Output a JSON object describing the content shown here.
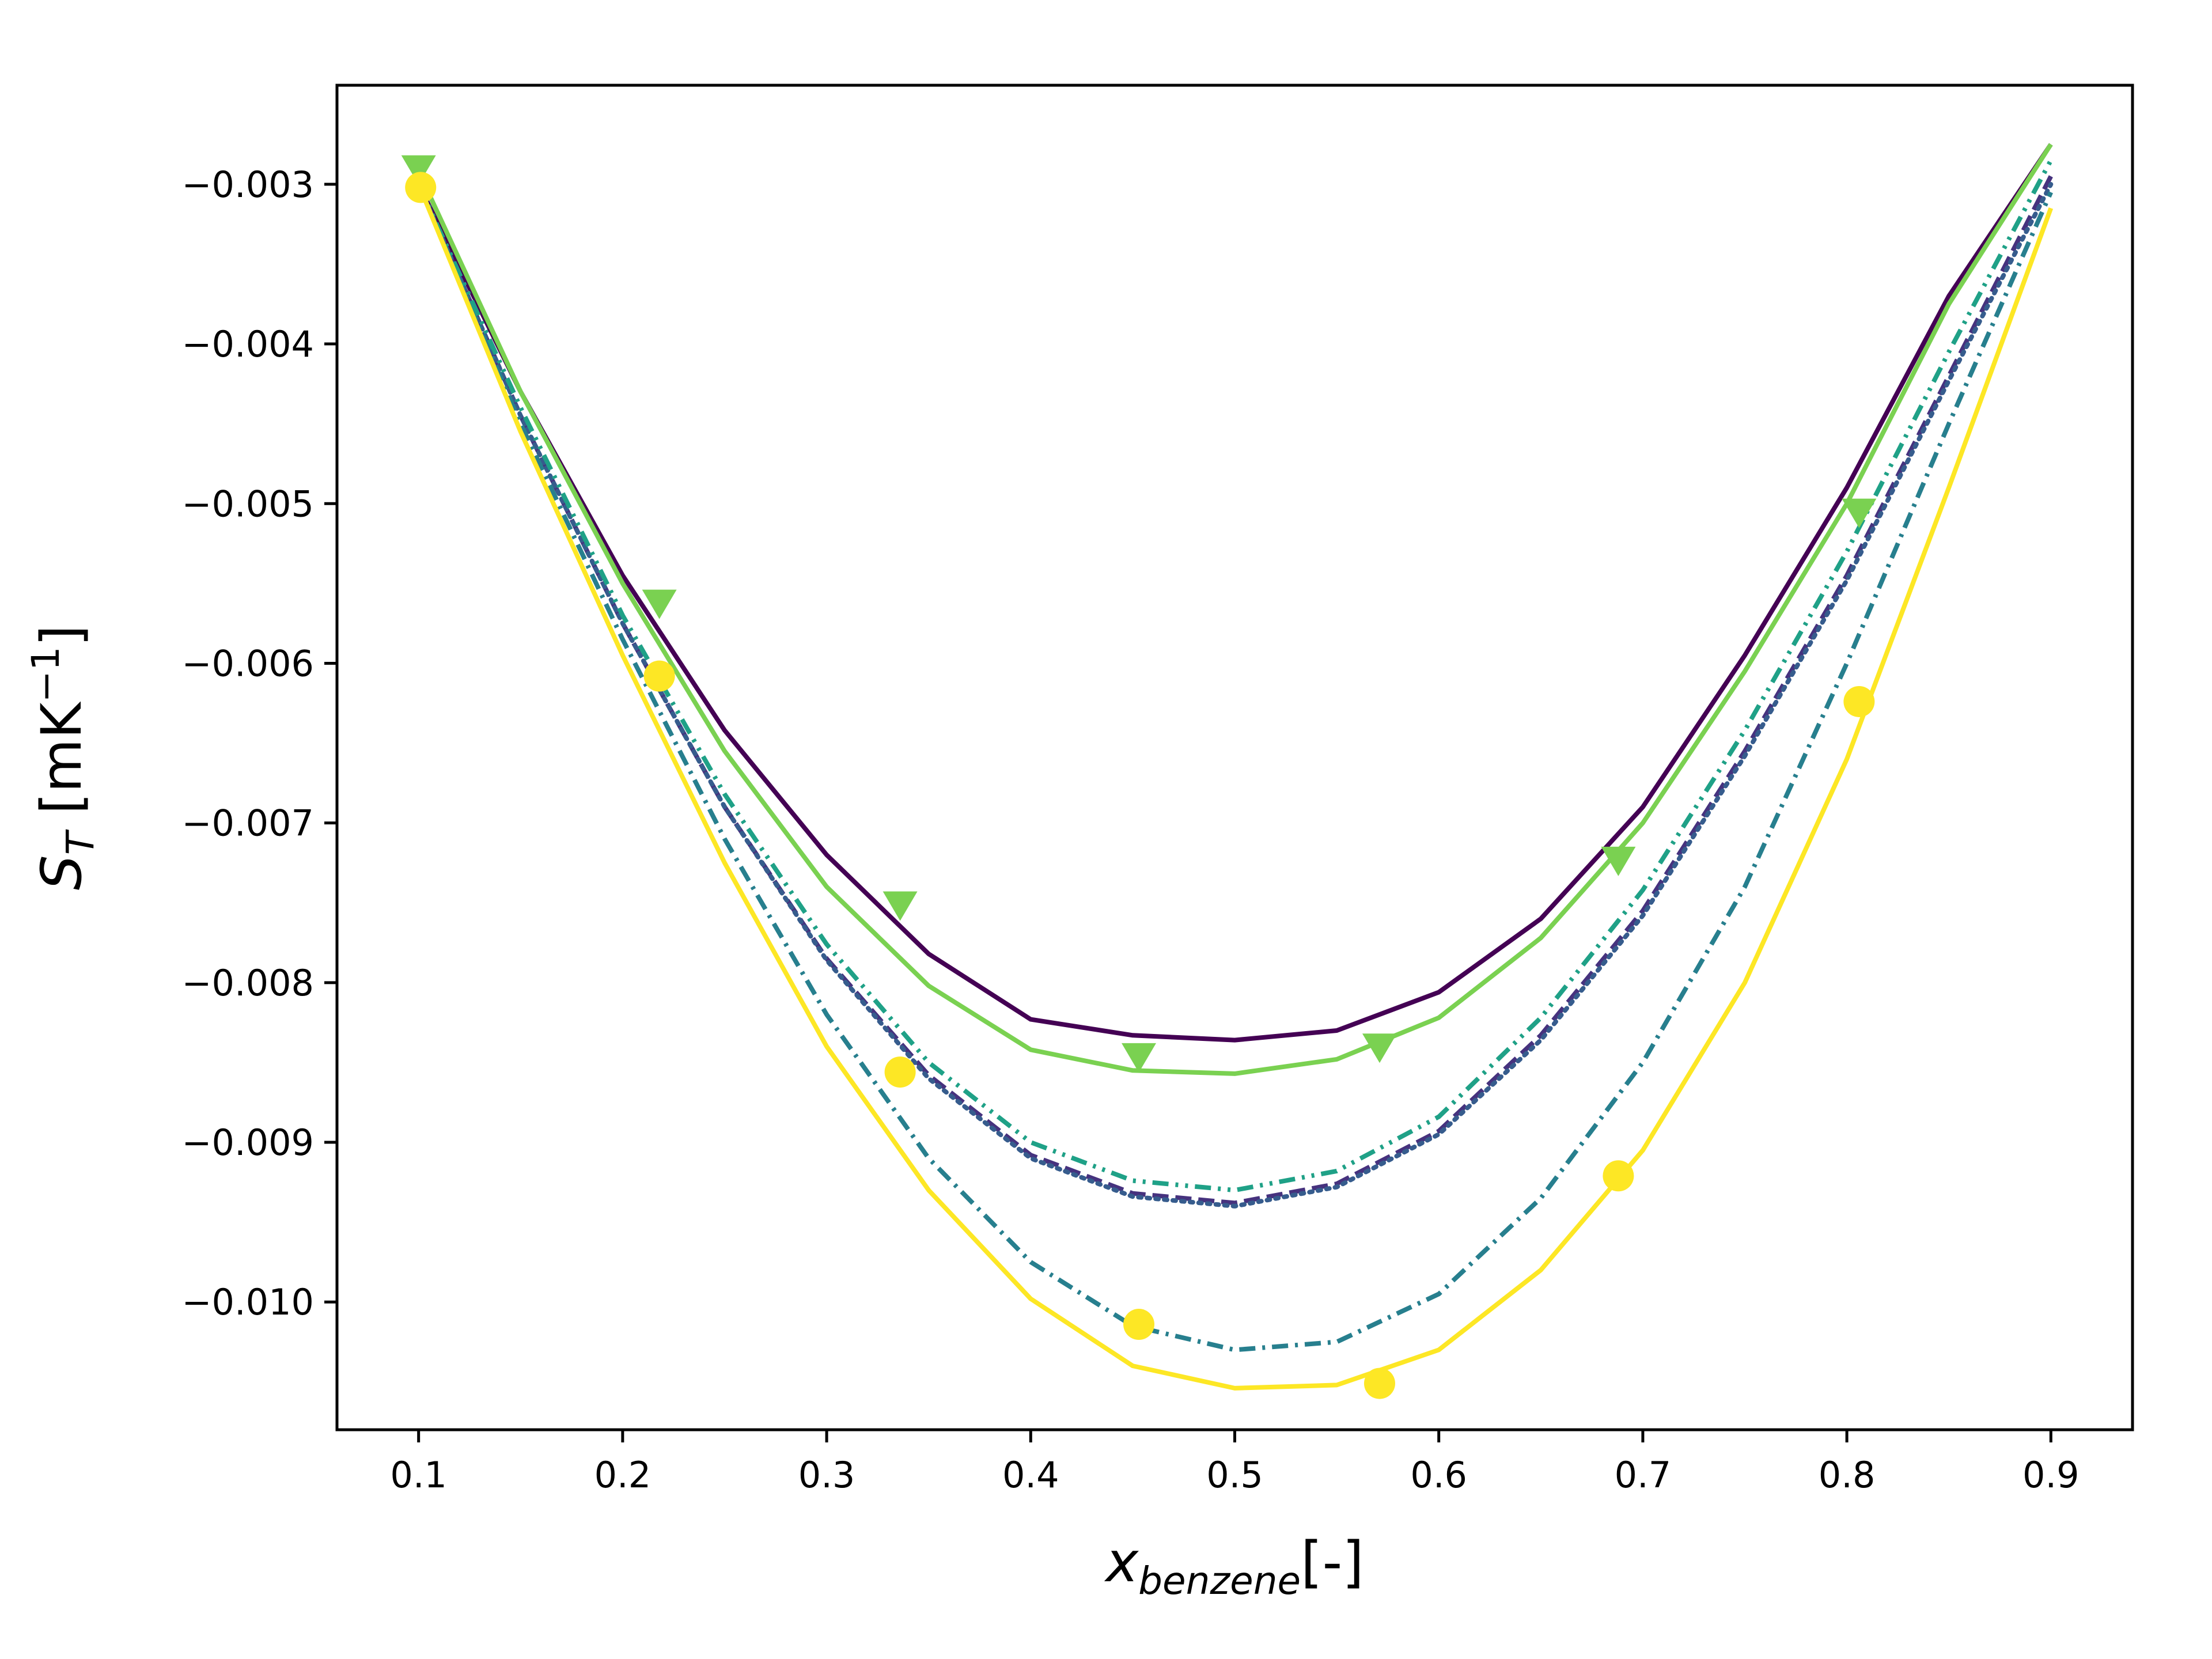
{
  "chart_data": {
    "type": "line",
    "xlabel": {
      "base": "x",
      "sub": "benzene",
      "suffix": "[-]"
    },
    "ylabel": {
      "base": "S",
      "sub": "T",
      "suffix": " [mK",
      "sup": "−1",
      "close": "]"
    },
    "xlim": [
      0.06,
      0.94
    ],
    "ylim": [
      -0.0108,
      -0.00238
    ],
    "xticks": [
      0.1,
      0.2,
      0.3,
      0.4,
      0.5,
      0.6,
      0.7,
      0.8,
      0.9
    ],
    "xtick_labels": [
      "0.1",
      "0.2",
      "0.3",
      "0.4",
      "0.5",
      "0.6",
      "0.7",
      "0.8",
      "0.9"
    ],
    "yticks": [
      -0.003,
      -0.004,
      -0.005,
      -0.006,
      -0.007,
      -0.008,
      -0.009,
      -0.01
    ],
    "ytick_labels": [
      "−0.003",
      "−0.004",
      "−0.005",
      "−0.006",
      "−0.007",
      "−0.008",
      "−0.009",
      "−0.010"
    ],
    "grid": false,
    "legend": "none",
    "series": [
      {
        "color": "#440154",
        "style": "solid",
        "marker": "none",
        "x": [
          0.1,
          0.15,
          0.2,
          0.25,
          0.3,
          0.35,
          0.4,
          0.45,
          0.5,
          0.55,
          0.6,
          0.65,
          0.7,
          0.75,
          0.8,
          0.85,
          0.9
        ],
        "y": [
          -0.003,
          -0.0043,
          -0.00545,
          -0.00642,
          -0.0072,
          -0.00782,
          -0.00823,
          -0.00833,
          -0.00836,
          -0.0083,
          -0.00806,
          -0.0076,
          -0.0069,
          -0.00595,
          -0.0049,
          -0.0037,
          -0.00275
        ]
      },
      {
        "color": "#46327e",
        "style": "dashed",
        "marker": "none",
        "x": [
          0.1,
          0.15,
          0.2,
          0.25,
          0.3,
          0.35,
          0.4,
          0.45,
          0.5,
          0.55,
          0.6,
          0.65,
          0.7,
          0.75,
          0.8,
          0.85,
          0.9
        ],
        "y": [
          -0.003,
          -0.00445,
          -0.00575,
          -0.0069,
          -0.00785,
          -0.00858,
          -0.00908,
          -0.00932,
          -0.00938,
          -0.00926,
          -0.00893,
          -0.00833,
          -0.00755,
          -0.00655,
          -0.00545,
          -0.0042,
          -0.00295
        ]
      },
      {
        "color": "#365c8d",
        "style": "dotted",
        "marker": "none",
        "x": [
          0.1,
          0.15,
          0.2,
          0.25,
          0.3,
          0.35,
          0.4,
          0.45,
          0.5,
          0.55,
          0.6,
          0.65,
          0.7,
          0.75,
          0.8,
          0.85,
          0.9
        ],
        "y": [
          -0.003,
          -0.00445,
          -0.00575,
          -0.0069,
          -0.00786,
          -0.0086,
          -0.0091,
          -0.00934,
          -0.0094,
          -0.00928,
          -0.00895,
          -0.00836,
          -0.00758,
          -0.00658,
          -0.00548,
          -0.00423,
          -0.003
        ]
      },
      {
        "color": "#277f8e",
        "style": "dashdot",
        "marker": "none",
        "x": [
          0.1,
          0.15,
          0.2,
          0.25,
          0.3,
          0.35,
          0.4,
          0.45,
          0.5,
          0.55,
          0.6,
          0.65,
          0.7,
          0.75,
          0.8,
          0.85,
          0.9
        ],
        "y": [
          -0.003,
          -0.0045,
          -0.00585,
          -0.0071,
          -0.0082,
          -0.0091,
          -0.00975,
          -0.01015,
          -0.0103,
          -0.01025,
          -0.00995,
          -0.00935,
          -0.0085,
          -0.0074,
          -0.006,
          -0.0045,
          -0.00305
        ]
      },
      {
        "color": "#1fa187",
        "style": "dashdotdot",
        "marker": "none",
        "x": [
          0.1,
          0.15,
          0.2,
          0.25,
          0.3,
          0.35,
          0.4,
          0.45,
          0.5,
          0.55,
          0.6,
          0.65,
          0.7,
          0.75,
          0.8,
          0.85,
          0.9
        ],
        "y": [
          -0.003,
          -0.0044,
          -0.0057,
          -0.00682,
          -0.00776,
          -0.0085,
          -0.009,
          -0.00924,
          -0.0093,
          -0.00918,
          -0.00884,
          -0.00822,
          -0.00742,
          -0.00642,
          -0.0053,
          -0.00405,
          -0.00285
        ]
      },
      {
        "color": "#7ad151",
        "style": "solid",
        "marker": "triangle-down",
        "x": [
          0.1,
          0.15,
          0.2,
          0.25,
          0.3,
          0.35,
          0.4,
          0.45,
          0.5,
          0.55,
          0.6,
          0.65,
          0.7,
          0.75,
          0.8,
          0.85,
          0.9
        ],
        "y": [
          -0.00292,
          -0.0043,
          -0.0055,
          -0.00655,
          -0.0074,
          -0.00802,
          -0.00842,
          -0.00855,
          -0.00857,
          -0.00848,
          -0.00822,
          -0.00772,
          -0.007,
          -0.00605,
          -0.005,
          -0.00375,
          -0.00275
        ],
        "marker_x": [
          0.1,
          0.218,
          0.336,
          0.453,
          0.571,
          0.688,
          0.806
        ],
        "marker_y": [
          -0.0029,
          -0.00562,
          -0.00751,
          -0.00846,
          -0.0084,
          -0.00723,
          -0.00505
        ]
      },
      {
        "color": "#fde725",
        "style": "solid",
        "marker": "circle",
        "x": [
          0.1,
          0.15,
          0.2,
          0.25,
          0.3,
          0.35,
          0.4,
          0.45,
          0.5,
          0.55,
          0.6,
          0.65,
          0.7,
          0.75,
          0.8,
          0.85,
          0.9
        ],
        "y": [
          -0.003,
          -0.00455,
          -0.00595,
          -0.00725,
          -0.0084,
          -0.0093,
          -0.00998,
          -0.0104,
          -0.01054,
          -0.01052,
          -0.0103,
          -0.0098,
          -0.00905,
          -0.008,
          -0.0066,
          -0.0049,
          -0.00315
        ],
        "marker_x": [
          0.101,
          0.218,
          0.336,
          0.453,
          0.571,
          0.688,
          0.806
        ],
        "marker_y": [
          -0.00302,
          -0.00608,
          -0.00856,
          -0.01014,
          -0.01051,
          -0.00921,
          -0.00624
        ]
      }
    ]
  }
}
